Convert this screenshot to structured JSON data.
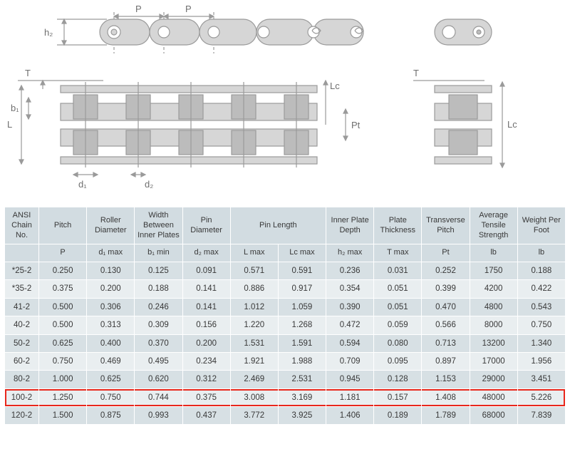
{
  "diagram": {
    "stroke_color": "#9a9a9a",
    "fill_light": "#d6d6d6",
    "fill_dark": "#bcbcbc",
    "dim_text_color": "#6f6f6f",
    "labels": [
      "P",
      "P",
      "h₂",
      "T",
      "b₁",
      "L",
      "d₁",
      "d₂",
      "Lc",
      "Pt",
      "T",
      "Lc"
    ]
  },
  "table": {
    "header_bg": "#d2dce1",
    "row_bg_a": "#e9eef0",
    "row_bg_b": "#d7e0e4",
    "highlight_color": "#e8271c",
    "text_color": "#383838",
    "font_size_header": 11,
    "font_size_body": 11.5,
    "columns_header": [
      {
        "label": "ANSI Chain No.",
        "colspan": 1,
        "rowspan": 1
      },
      {
        "label": "Pitch",
        "colspan": 1,
        "rowspan": 1
      },
      {
        "label": "Roller Diameter",
        "colspan": 1,
        "rowspan": 1
      },
      {
        "label": "Width Between Inner Plates",
        "colspan": 1,
        "rowspan": 1
      },
      {
        "label": "Pin Diameter",
        "colspan": 1,
        "rowspan": 1
      },
      {
        "label": "Pin Length",
        "colspan": 2,
        "rowspan": 1
      },
      {
        "label": "Inner Plate Depth",
        "colspan": 1,
        "rowspan": 1
      },
      {
        "label": "Plate Thickness",
        "colspan": 1,
        "rowspan": 1
      },
      {
        "label": "Transverse Pitch",
        "colspan": 1,
        "rowspan": 1
      },
      {
        "label": "Average Tensile Strength",
        "colspan": 1,
        "rowspan": 1
      },
      {
        "label": "Weight Per Foot",
        "colspan": 1,
        "rowspan": 1
      }
    ],
    "columns_sub": [
      "",
      "P",
      "d₁ max",
      "b₁ min",
      "d₂ max",
      "L max",
      "Lc max",
      "h₂ max",
      "T max",
      "Pt",
      "lb",
      "lb"
    ],
    "rows": [
      {
        "band": "b",
        "cells": [
          "*25-2",
          "0.250",
          "0.130",
          "0.125",
          "0.091",
          "0.571",
          "0.591",
          "0.236",
          "0.031",
          "0.252",
          "1750",
          "0.188"
        ]
      },
      {
        "band": "a",
        "cells": [
          "*35-2",
          "0.375",
          "0.200",
          "0.188",
          "0.141",
          "0.886",
          "0.917",
          "0.354",
          "0.051",
          "0.399",
          "4200",
          "0.422"
        ]
      },
      {
        "band": "b",
        "cells": [
          "41-2",
          "0.500",
          "0.306",
          "0.246",
          "0.141",
          "1.012",
          "1.059",
          "0.390",
          "0.051",
          "0.470",
          "4800",
          "0.543"
        ]
      },
      {
        "band": "a",
        "cells": [
          "40-2",
          "0.500",
          "0.313",
          "0.309",
          "0.156",
          "1.220",
          "1.268",
          "0.472",
          "0.059",
          "0.566",
          "8000",
          "0.750"
        ]
      },
      {
        "band": "b",
        "cells": [
          "50-2",
          "0.625",
          "0.400",
          "0.370",
          "0.200",
          "1.531",
          "1.591",
          "0.594",
          "0.080",
          "0.713",
          "13200",
          "1.340"
        ]
      },
      {
        "band": "a",
        "cells": [
          "60-2",
          "0.750",
          "0.469",
          "0.495",
          "0.234",
          "1.921",
          "1.988",
          "0.709",
          "0.095",
          "0.897",
          "17000",
          "1.956"
        ]
      },
      {
        "band": "b",
        "cells": [
          "80-2",
          "1.000",
          "0.625",
          "0.620",
          "0.312",
          "2.469",
          "2.531",
          "0.945",
          "0.128",
          "1.153",
          "29000",
          "3.451"
        ]
      },
      {
        "band": "a",
        "hl": true,
        "cells": [
          "100-2",
          "1.250",
          "0.750",
          "0.744",
          "0.375",
          "3.008",
          "3.169",
          "1.181",
          "0.157",
          "1.408",
          "48000",
          "5.226"
        ]
      },
      {
        "band": "b",
        "cells": [
          "120-2",
          "1.500",
          "0.875",
          "0.993",
          "0.437",
          "3.772",
          "3.925",
          "1.406",
          "0.189",
          "1.789",
          "68000",
          "7.839"
        ]
      }
    ]
  }
}
